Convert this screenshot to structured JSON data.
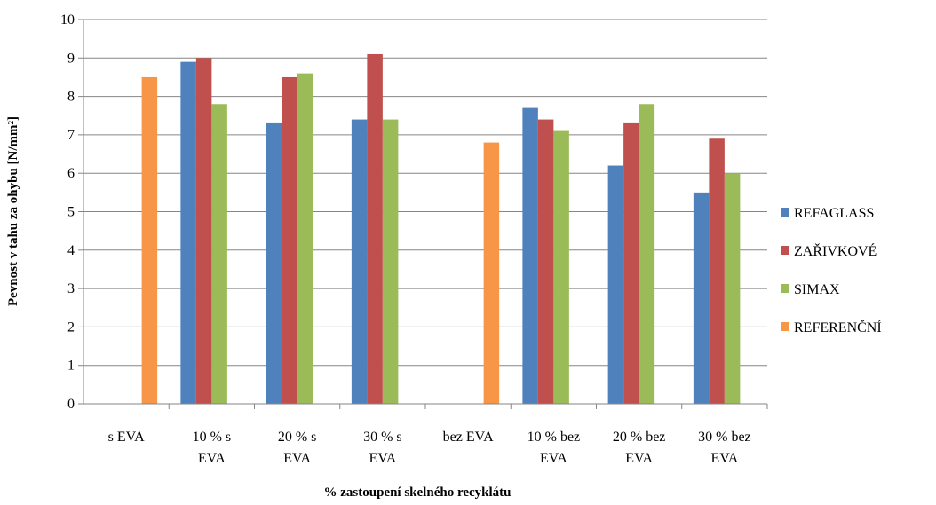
{
  "chart_data": {
    "type": "bar",
    "title": "",
    "xlabel": "% zastoupení skelného recyklátu",
    "ylabel": "Pevnost v tahu za ohybu [N/mm²]",
    "ylim": [
      0,
      10
    ],
    "yticks": [
      "0",
      "1",
      "2",
      "3",
      "4",
      "5",
      "6",
      "7",
      "8",
      "9",
      "10"
    ],
    "grid": true,
    "legend_position": "right",
    "categories": [
      [
        "s EVA"
      ],
      [
        "10 % s",
        "EVA"
      ],
      [
        "20 % s",
        "EVA"
      ],
      [
        "30 % s",
        "EVA"
      ],
      [
        "bez EVA"
      ],
      [
        "10 % bez",
        "EVA"
      ],
      [
        "20 %  bez",
        "EVA"
      ],
      [
        "30 %  bez",
        "EVA"
      ]
    ],
    "series": [
      {
        "name": "REFAGLASS",
        "color": "#4f81bd",
        "values": [
          null,
          8.9,
          7.3,
          7.4,
          null,
          7.7,
          6.2,
          5.5
        ]
      },
      {
        "name": "ZAŘIVKOVÉ",
        "color": "#c0504d",
        "values": [
          null,
          9.0,
          8.5,
          9.1,
          null,
          7.4,
          7.3,
          6.9
        ]
      },
      {
        "name": "SIMAX",
        "color": "#9bbb59",
        "values": [
          null,
          7.8,
          8.6,
          7.4,
          null,
          7.1,
          7.8,
          6.0
        ]
      },
      {
        "name": "REFERENČNÍ",
        "color": "#f79646",
        "values": [
          8.5,
          null,
          null,
          null,
          6.8,
          null,
          null,
          null
        ]
      }
    ]
  }
}
